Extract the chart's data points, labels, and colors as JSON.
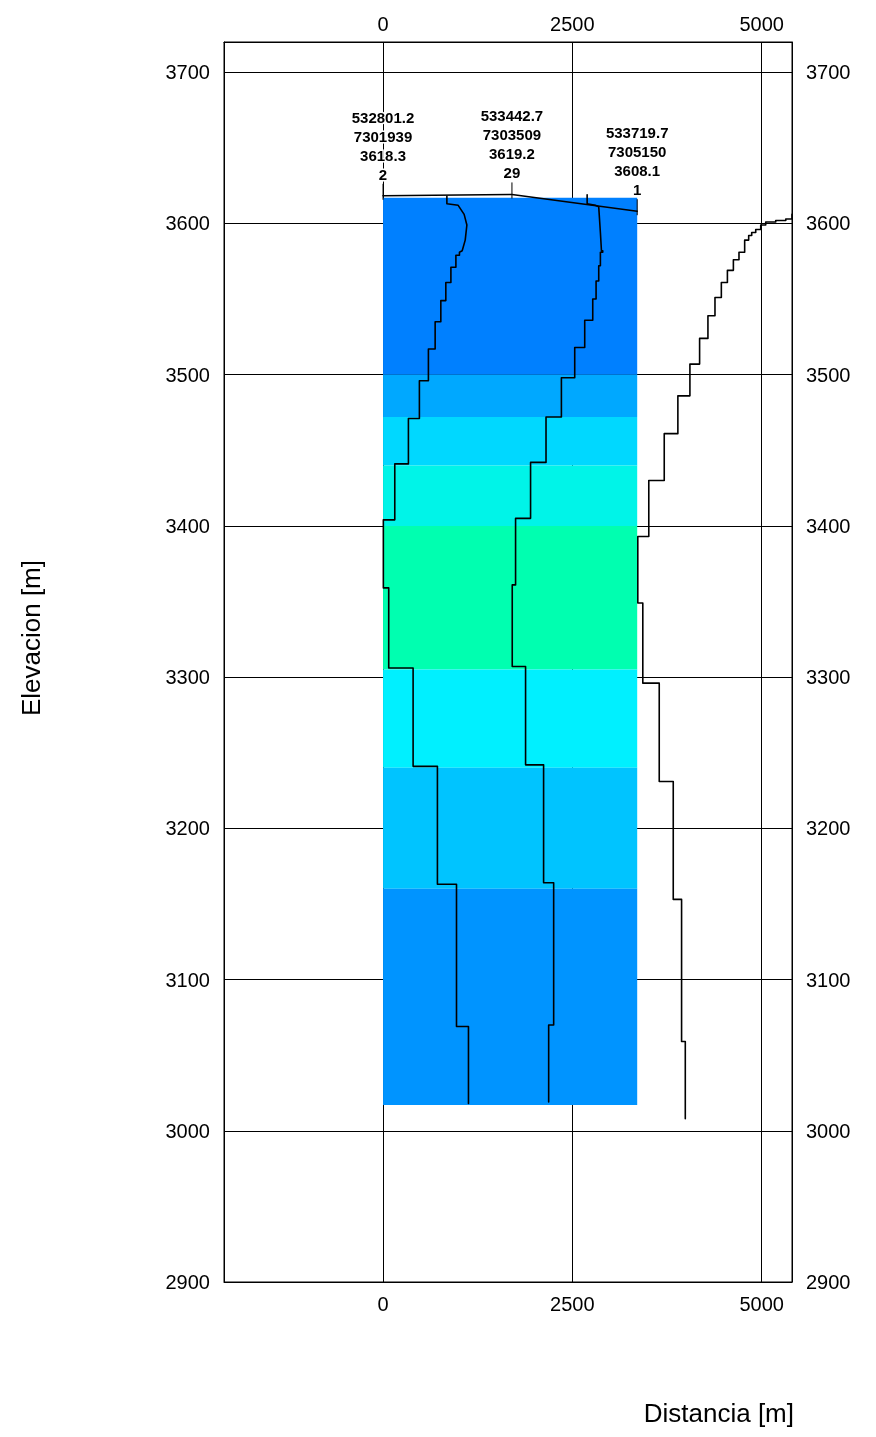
{
  "chart_data": {
    "type": "line",
    "xlabel": "Distancia [m]",
    "ylabel": "Elevacion [m]",
    "xlim": [
      -2100,
      5400
    ],
    "xticks": [
      0,
      2500,
      5000
    ],
    "x2lim": [
      -2100,
      5400
    ],
    "x2ticks": [
      0,
      2500,
      5000
    ],
    "ylim": [
      2900,
      3720
    ],
    "yticks": [
      2900,
      3000,
      3100,
      3200,
      3300,
      3400,
      3500,
      3600,
      3700
    ],
    "y2lim": [
      2900,
      3720
    ],
    "y2ticks": [
      2900,
      3000,
      3100,
      3200,
      3300,
      3400,
      3500,
      3600,
      3700
    ],
    "grid": true,
    "marker": "none",
    "line_style": "solid",
    "bands": [
      {
        "axis": "y",
        "from": 3500,
        "to": 3617,
        "color": "#0080ff"
      },
      {
        "axis": "y",
        "from": 3472,
        "to": 3500,
        "color": "#00a8ff"
      },
      {
        "axis": "y",
        "from": 3440,
        "to": 3472,
        "color": "#00d8ff"
      },
      {
        "axis": "y",
        "from": 3400,
        "to": 3440,
        "color": "#00f4e8"
      },
      {
        "axis": "y",
        "from": 3305,
        "to": 3400,
        "color": "#00ffb0"
      },
      {
        "axis": "y",
        "from": 3240,
        "to": 3305,
        "color": "#00f0ff"
      },
      {
        "axis": "y",
        "from": 3160,
        "to": 3240,
        "color": "#00c4ff"
      },
      {
        "axis": "y",
        "from": 3017,
        "to": 3160,
        "color": "#0094ff"
      }
    ],
    "annotations": [
      {
        "text": "532801.2\n7301939\n3618.3\n2",
        "x": 0,
        "y": 3618.3
      },
      {
        "text": "533442.7\n7303509\n3619.2\n29",
        "x": 1702,
        "y": 3619.2
      },
      {
        "text": "533719.7\n7305150\n3608.1\n1",
        "x": 3356,
        "y": 3608.1
      }
    ],
    "series": [
      {
        "color": "#000000",
        "x": [
          0,
          1702,
          3356
        ],
        "values": [
          3618.3,
          3619.2,
          3608.1
        ]
      },
      {
        "color": "#000000",
        "x": [
          843,
          843,
          992,
          1071,
          1107,
          1085,
          1045,
          1009,
          1009,
          962,
          962,
          896,
          896,
          829,
          829,
          763,
          763,
          688,
          688,
          599,
          599,
          480,
          480,
          335,
          335,
          155,
          155,
          4,
          4,
          75,
          75,
          397,
          397,
          718,
          718,
          970,
          970,
          1128,
          1128
        ],
        "values": [
          3618,
          3613,
          3612,
          3606,
          3599,
          3589,
          3582,
          3581,
          3579,
          3579,
          3571,
          3571,
          3561,
          3561,
          3549,
          3549,
          3535,
          3535,
          3517,
          3517,
          3496,
          3496,
          3471,
          3471,
          3441,
          3441,
          3404,
          3404,
          3359,
          3359,
          3306,
          3306,
          3241,
          3241,
          3163,
          3163,
          3069,
          3069,
          3018
        ]
      },
      {
        "color": "#000000",
        "x": [
          2695,
          2695,
          2804,
          2848,
          2870,
          2884,
          2901,
          2901,
          2870,
          2870,
          2848,
          2848,
          2813,
          2813,
          2769,
          2769,
          2663,
          2663,
          2531,
          2531,
          2355,
          2355,
          2152,
          2152,
          1948,
          1948,
          1750,
          1750,
          1706,
          1706,
          1882,
          1882,
          2120,
          2120,
          2253,
          2253,
          2187,
          2187
        ],
        "values": [
          3619,
          3613,
          3612,
          3611,
          3594,
          3582,
          3582,
          3581,
          3581,
          3572,
          3572,
          3562,
          3562,
          3550,
          3550,
          3536,
          3536,
          3518,
          3518,
          3498,
          3498,
          3472,
          3472,
          3442,
          3442,
          3405,
          3405,
          3361,
          3361,
          3307,
          3307,
          3242,
          3242,
          3164,
          3164,
          3070,
          3070,
          3019
        ]
      },
      {
        "color": "#000000",
        "x": [
          5400,
          5400,
          5318,
          5318,
          5185,
          5185,
          5053,
          5053,
          4987,
          4987,
          4921,
          4921,
          4868,
          4868,
          4828,
          4828,
          4775,
          4775,
          4700,
          4700,
          4626,
          4626,
          4547,
          4547,
          4467,
          4467,
          4383,
          4383,
          4290,
          4290,
          4180,
          4180,
          4052,
          4052,
          3893,
          3893,
          3713,
          3713,
          3509,
          3509,
          3364,
          3364,
          3430,
          3430,
          3647,
          3647,
          3832,
          3832,
          3942,
          3942,
          3991,
          3991
        ],
        "values": [
          3606,
          3603,
          3603,
          3602,
          3602,
          3601,
          3601,
          3599,
          3599,
          3596,
          3596,
          3594,
          3594,
          3592,
          3592,
          3589,
          3589,
          3581,
          3581,
          3576,
          3576,
          3569,
          3569,
          3561,
          3561,
          3551,
          3551,
          3539,
          3539,
          3524,
          3524,
          3507,
          3507,
          3486,
          3486,
          3461,
          3461,
          3430,
          3430,
          3393,
          3393,
          3349,
          3349,
          3296,
          3296,
          3231,
          3231,
          3153,
          3153,
          3059,
          3059,
          3008
        ]
      }
    ]
  }
}
